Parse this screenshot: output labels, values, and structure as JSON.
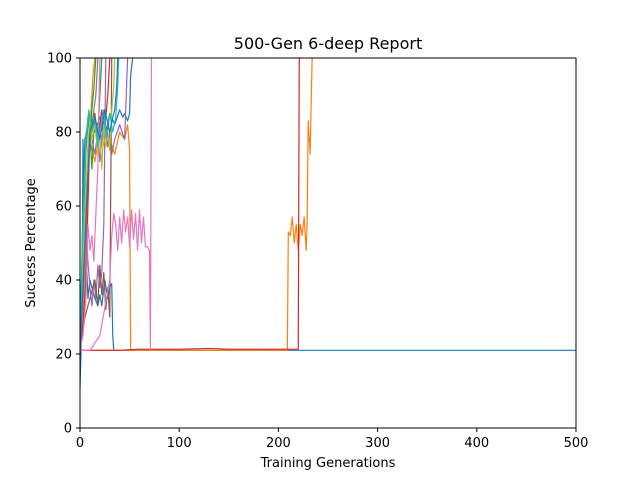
{
  "chart_data": {
    "type": "line",
    "title": "500-Gen 6-deep Report",
    "xlabel": "Training Generations",
    "ylabel": "Success Percentage",
    "xlim": [
      0,
      500
    ],
    "ylim": [
      0,
      100
    ],
    "xticks": [
      "0",
      "100",
      "200",
      "300",
      "400",
      "500"
    ],
    "yticks": [
      "0",
      "20",
      "40",
      "60",
      "80",
      "100"
    ],
    "grid": false,
    "legend": "none",
    "series": [
      {
        "color": "#1f77b4",
        "x": [
          0,
          2,
          3,
          5,
          8,
          10,
          12,
          15,
          18,
          20,
          22,
          25,
          28,
          30,
          32,
          33,
          34,
          60,
          100,
          200,
          300,
          400,
          500
        ],
        "y": [
          11,
          30,
          78,
          55,
          35,
          40,
          38,
          35,
          33,
          36,
          33,
          40,
          35,
          38,
          39,
          25,
          21,
          21,
          21,
          21,
          21,
          21,
          21
        ]
      },
      {
        "color": "#1f77b4",
        "x": [
          0,
          3,
          5,
          8,
          10,
          15,
          20,
          25,
          30,
          35,
          40,
          43,
          45,
          48,
          50,
          51,
          53
        ],
        "y": [
          20,
          60,
          78,
          82,
          85,
          80,
          84,
          78,
          85,
          82,
          86,
          84,
          85,
          83,
          85,
          95,
          100
        ]
      },
      {
        "color": "#ff7f0e",
        "x": [
          0,
          5,
          10,
          20,
          30,
          40,
          45,
          48,
          49,
          50,
          100,
          150,
          200,
          209,
          210,
          212,
          214,
          216,
          218,
          220,
          222,
          224,
          226,
          228,
          229,
          230,
          232,
          234
        ],
        "y": [
          21,
          21,
          21,
          21,
          21,
          21,
          21,
          21,
          21,
          21,
          21,
          21,
          21,
          21,
          53,
          52,
          57,
          50,
          55,
          48,
          55,
          52,
          57,
          48,
          56,
          83,
          74,
          100
        ]
      },
      {
        "color": "#ff7f0e",
        "x": [
          0,
          5,
          10,
          15,
          20,
          25,
          30,
          35,
          40,
          45,
          48,
          50,
          51
        ],
        "y": [
          25,
          50,
          78,
          72,
          80,
          76,
          78,
          74,
          80,
          78,
          82,
          75,
          21
        ]
      },
      {
        "color": "#ff7f0e",
        "x": [
          0,
          5,
          10,
          13,
          15
        ],
        "y": [
          21,
          40,
          80,
          95,
          100
        ]
      },
      {
        "color": "#2ca02c",
        "x": [
          0,
          2,
          4,
          6,
          8,
          10,
          12,
          14,
          16
        ],
        "y": [
          22,
          45,
          60,
          78,
          84,
          80,
          86,
          92,
          100
        ]
      },
      {
        "color": "#2ca02c",
        "x": [
          0,
          3,
          6,
          9,
          12,
          15,
          18,
          20,
          22
        ],
        "y": [
          25,
          50,
          75,
          85,
          70,
          85,
          78,
          90,
          100
        ]
      },
      {
        "color": "#d62728",
        "x": [
          0,
          10,
          20,
          30,
          40,
          60,
          80,
          100,
          130,
          150,
          200,
          220,
          221
        ],
        "y": [
          21,
          21,
          21,
          21,
          21,
          21.3,
          21.3,
          21.3,
          21.5,
          21.3,
          21.3,
          21.3,
          100
        ]
      },
      {
        "color": "#d62728",
        "x": [
          0,
          3,
          6,
          10,
          14,
          18,
          20,
          22,
          24,
          26,
          28,
          30
        ],
        "y": [
          21,
          28,
          40,
          80,
          85,
          78,
          82,
          86,
          80,
          84,
          90,
          100
        ]
      },
      {
        "color": "#9467bd",
        "x": [
          0,
          5,
          8,
          10,
          12,
          15,
          18,
          20,
          22,
          25,
          28,
          30,
          32,
          35,
          40,
          45,
          48
        ],
        "y": [
          21,
          50,
          76,
          82,
          78,
          74,
          80,
          72,
          78,
          84,
          76,
          80,
          74,
          78,
          82,
          78,
          100
        ]
      },
      {
        "color": "#9467bd",
        "x": [
          0,
          4,
          6,
          8,
          10,
          12,
          14,
          16,
          18,
          20,
          22,
          24,
          26
        ],
        "y": [
          21,
          40,
          55,
          45,
          38,
          33,
          40,
          35,
          44,
          38,
          42,
          55,
          100
        ]
      },
      {
        "color": "#8c564b",
        "x": [
          0,
          5,
          10,
          15,
          18,
          20,
          22,
          24,
          26,
          28,
          30,
          32
        ],
        "y": [
          21,
          30,
          35,
          40,
          33,
          44,
          36,
          42,
          32,
          38,
          30,
          100
        ]
      },
      {
        "color": "#e377c2",
        "x": [
          0,
          5,
          10,
          20,
          30,
          32,
          34,
          36,
          38,
          40,
          42,
          44,
          46,
          48,
          50,
          52,
          54,
          56,
          58,
          60,
          62,
          64,
          66,
          68,
          70,
          71,
          72
        ],
        "y": [
          21,
          21,
          21,
          25,
          40,
          52,
          58,
          55,
          48,
          57,
          50,
          59,
          53,
          57,
          49,
          59,
          51,
          58,
          48,
          59,
          50,
          57,
          49,
          49,
          48,
          21,
          100
        ]
      },
      {
        "color": "#e377c2",
        "x": [
          0,
          3,
          6,
          8,
          10,
          12,
          14,
          16,
          18,
          20
        ],
        "y": [
          21,
          25,
          35,
          55,
          48,
          52,
          45,
          58,
          70,
          100
        ]
      },
      {
        "color": "#7f7f7f",
        "x": [
          0,
          4,
          8,
          12,
          14,
          16,
          18
        ],
        "y": [
          21,
          45,
          70,
          82,
          86,
          90,
          100
        ]
      },
      {
        "color": "#bcbd22",
        "x": [
          0,
          5,
          10,
          12,
          15,
          18,
          20,
          22,
          24,
          26,
          28,
          30,
          32,
          34,
          35
        ],
        "y": [
          21,
          60,
          85,
          78,
          82,
          74,
          80,
          70,
          82,
          76,
          80,
          75,
          86,
          92,
          100
        ]
      },
      {
        "color": "#17becf",
        "x": [
          0,
          3,
          6,
          9,
          12,
          15,
          18,
          21,
          24,
          27,
          30,
          33,
          36,
          38,
          39
        ],
        "y": [
          21,
          55,
          78,
          86,
          80,
          84,
          76,
          82,
          86,
          78,
          85,
          80,
          84,
          92,
          100
        ]
      },
      {
        "color": "#1f77b4",
        "x": [
          0,
          5,
          10,
          15,
          20,
          25,
          30,
          33,
          35,
          37,
          38
        ],
        "y": [
          21,
          50,
          80,
          84,
          78,
          86,
          80,
          84,
          86,
          92,
          100
        ]
      }
    ]
  }
}
